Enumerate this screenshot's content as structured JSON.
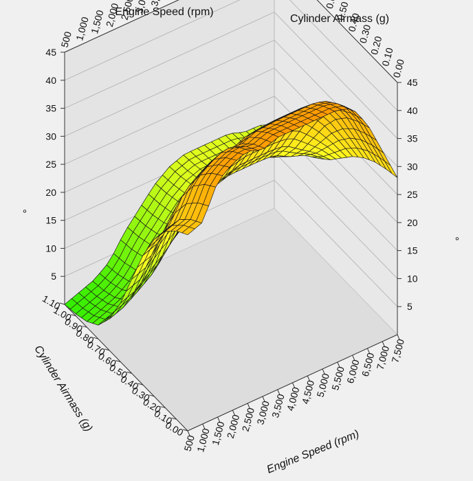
{
  "chart_data": {
    "type": "surface",
    "title": "",
    "x_axis": {
      "label": "Engine Speed (rpm)",
      "ticks": [
        "500",
        "1,000",
        "1,500",
        "2,000",
        "2,500",
        "3,000",
        "3,500",
        "4,000",
        "4,500",
        "5,000",
        "5,500",
        "6,000",
        "6,500",
        "7,000",
        "7,500"
      ],
      "range": [
        500,
        7500
      ]
    },
    "y_axis": {
      "label": "Cylinder Airmass (g)",
      "ticks": [
        "0.00",
        "0.10",
        "0.20",
        "0.30",
        "0.40",
        "0.50",
        "0.60",
        "0.70",
        "0.80",
        "0.90",
        "1.00",
        "1.10"
      ],
      "range": [
        0.0,
        1.1
      ]
    },
    "z_axis": {
      "label": "°",
      "ticks": [
        "5",
        "10",
        "15",
        "20",
        "25",
        "30",
        "35",
        "40",
        "45"
      ],
      "range": [
        0,
        45
      ]
    },
    "colors": {
      "low": "#33ee00",
      "mid": "#ffff22",
      "high": "#ff9900",
      "background": "#f0f0f0",
      "pane_back": "#e4e4e4",
      "pane_side": "#e8e8e8",
      "floor": "#dddddd"
    },
    "surface_profiles": {
      "speed_rpm": [
        500,
        1000,
        1500,
        2000,
        2500,
        3000,
        3500,
        4000,
        4500,
        5000,
        5500,
        6000,
        6500,
        7000,
        7500
      ],
      "advance_at_zero_airmass_deg": [
        35,
        36,
        42,
        44,
        45,
        44,
        45,
        45,
        45,
        45,
        45,
        44,
        40,
        34,
        28
      ],
      "advance_at_max_airmass_deg": [
        0,
        1,
        2,
        4,
        8,
        11,
        14,
        16,
        17,
        17,
        17,
        17,
        16,
        16,
        15
      ],
      "airmass_decay_shape": [
        0,
        0.04,
        0.1,
        0.2,
        0.34,
        0.52,
        0.7,
        0.84,
        0.93,
        0.97,
        0.99,
        1
      ]
    }
  }
}
